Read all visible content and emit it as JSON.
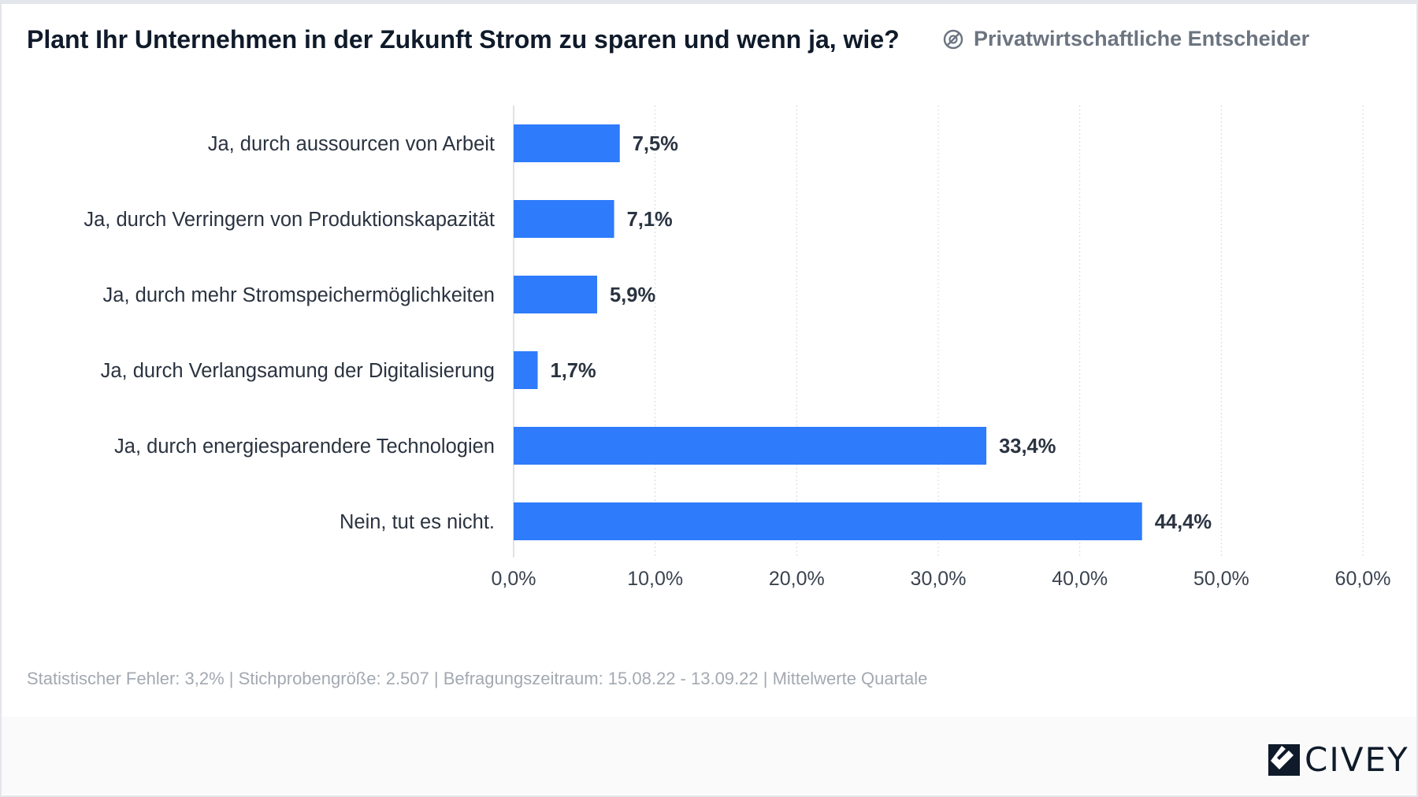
{
  "header": {
    "title": "Plant Ihr Unternehmen in der Zukunft Strom zu sparen und wenn ja, wie?",
    "segment_icon": "filter-circle-icon",
    "segment": "Privatwirtschaftliche Entscheider"
  },
  "chart_data": {
    "type": "bar",
    "orientation": "horizontal",
    "categories": [
      "Ja, durch aussourcen von Arbeit",
      "Ja, durch Verringern von Produktionskapazität",
      "Ja, durch mehr Stromspeichermöglichkeiten",
      "Ja, durch Verlangsamung der Digitalisierung",
      "Ja, durch energiesparendere Technologien",
      "Nein, tut es nicht."
    ],
    "values": [
      7.5,
      7.1,
      5.9,
      1.7,
      33.4,
      44.4
    ],
    "value_labels": [
      "7,5%",
      "7,1%",
      "5,9%",
      "1,7%",
      "33,4%",
      "44,4%"
    ],
    "xlim": [
      0,
      60
    ],
    "xticks": [
      0,
      10,
      20,
      30,
      40,
      50,
      60
    ],
    "xtick_labels": [
      "0,0%",
      "10,0%",
      "20,0%",
      "30,0%",
      "40,0%",
      "50,0%",
      "60,0%"
    ],
    "grid": "vertical dotted",
    "bar_color": "#2e7bfb"
  },
  "footer": {
    "note": "Statistischer Fehler: 3,2% | Stichprobengröße: 2.507 | Befragungszeitraum: 15.08.22 - 13.09.22 | Mittelwerte Quartale",
    "logo": "CIVEY"
  }
}
